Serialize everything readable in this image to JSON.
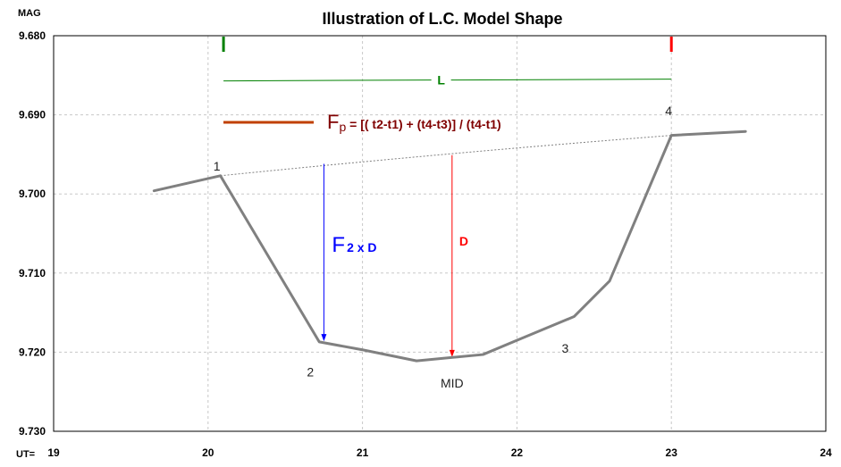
{
  "chart_data": {
    "type": "line",
    "title": "Illustration of L.C. Model Shape",
    "ylabel": "MAG",
    "xlabel": "UT=",
    "xlim": [
      19,
      24
    ],
    "ylim": [
      9.68,
      9.73
    ],
    "y_inverted": true,
    "x_ticks": [
      "19",
      "20",
      "21",
      "22",
      "23",
      "24"
    ],
    "y_ticks": [
      "9.680",
      "9.690",
      "9.700",
      "9.710",
      "9.720",
      "9.730"
    ],
    "grid": true,
    "series": [
      {
        "color": "#808080",
        "x": [
          19.65,
          20.08,
          20.72,
          21.0,
          21.35,
          21.78,
          22.0,
          22.37,
          22.6,
          23.0,
          23.48
        ],
        "y": [
          9.6996,
          9.6977,
          9.7187,
          9.7197,
          9.7211,
          9.7203,
          9.7185,
          9.7155,
          9.711,
          9.6926,
          9.6921
        ]
      }
    ],
    "baseline": {
      "x": [
        20.08,
        23.0
      ],
      "y": [
        9.6977,
        9.6926
      ],
      "style": "dotted"
    },
    "annotations": {
      "contact_labels": [
        {
          "text": "1",
          "x": 20.08,
          "y": 9.6965
        },
        {
          "text": "2",
          "x": 20.72,
          "y": 9.7225
        },
        {
          "text": "3",
          "x": 22.37,
          "y": 9.7195
        },
        {
          "text": "4",
          "x": 23.0,
          "y": 9.6895
        }
      ],
      "mid_label": {
        "text": "MID",
        "x": 21.58,
        "y": 9.7239
      },
      "L": {
        "text": "L",
        "x1": 20.1,
        "x2": 23.0,
        "y": 9.6856,
        "color": "#008000"
      },
      "start_marker": {
        "x": 20.1,
        "color": "#008000"
      },
      "end_marker": {
        "x": 23.0,
        "color": "#ff0000"
      },
      "Fp": {
        "symbol": "F",
        "subscript": "p",
        "formula": " = [( t2-t1) + (t4-t3)] / (t4-t1)",
        "color": "#800000",
        "swatch_color": "#c04000"
      },
      "F2xD": {
        "symbol": "F",
        "subscript": "2 x D",
        "x": 20.75,
        "y_from": 9.6962,
        "y_to": 9.7185,
        "color": "#0000ff"
      },
      "D": {
        "text": "D",
        "x": 21.58,
        "y_from": 9.6951,
        "y_to": 9.7205,
        "color": "#ff0000"
      }
    }
  }
}
